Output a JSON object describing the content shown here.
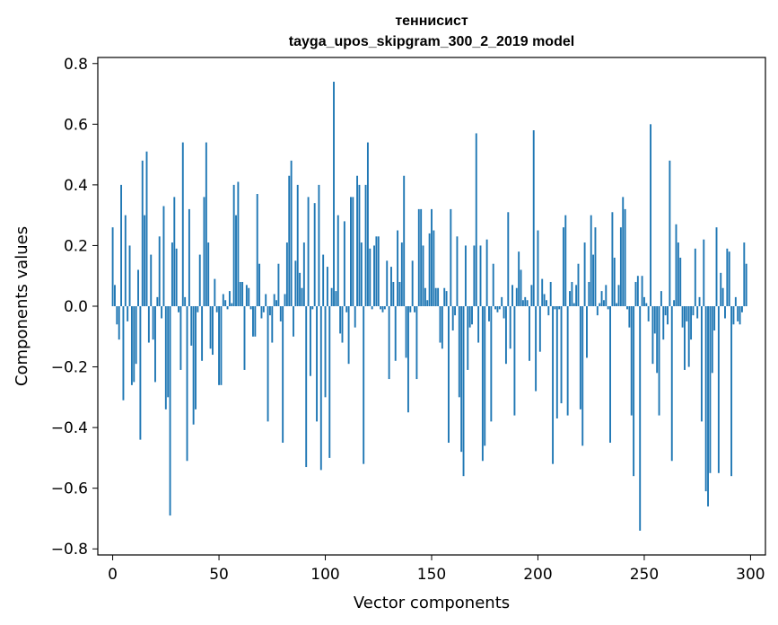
{
  "chart_data": {
    "type": "bar",
    "title": "теннисист",
    "subtitle": "tayga_upos_skipgram_300_2_2019 model",
    "xlabel": "Vector components",
    "ylabel": "Components values",
    "xlim": [
      -7,
      307
    ],
    "ylim": [
      -0.82,
      0.82
    ],
    "xticks": [
      0,
      50,
      100,
      150,
      200,
      250,
      300
    ],
    "xtick_labels": [
      "0",
      "50",
      "100",
      "150",
      "200",
      "250",
      "300"
    ],
    "yticks": [
      -0.8,
      -0.6,
      -0.4,
      -0.2,
      0.0,
      0.2,
      0.4,
      0.6,
      0.8
    ],
    "ytick_labels": [
      "−0.8",
      "−0.6",
      "−0.4",
      "−0.2",
      "0.0",
      "0.2",
      "0.4",
      "0.6",
      "0.8"
    ],
    "bar_color": "#1f77b4",
    "grid": false,
    "values": [
      0.26,
      0.07,
      -0.06,
      -0.11,
      0.4,
      -0.31,
      0.3,
      -0.05,
      0.2,
      -0.26,
      -0.25,
      -0.19,
      0.12,
      -0.44,
      0.48,
      0.3,
      0.51,
      -0.12,
      0.17,
      -0.11,
      -0.25,
      0.03,
      0.23,
      -0.04,
      0.33,
      -0.34,
      -0.3,
      -0.69,
      0.21,
      0.36,
      0.19,
      -0.02,
      -0.21,
      0.54,
      0.03,
      -0.51,
      0.32,
      -0.13,
      -0.39,
      -0.34,
      -0.02,
      0.17,
      -0.18,
      0.36,
      0.54,
      0.21,
      -0.14,
      -0.16,
      0.09,
      -0.02,
      -0.26,
      -0.26,
      0.04,
      0.02,
      -0.01,
      0.05,
      0.01,
      0.4,
      0.3,
      0.41,
      0.08,
      0.08,
      -0.21,
      0.07,
      0.06,
      -0.01,
      -0.1,
      -0.1,
      0.37,
      0.14,
      -0.04,
      -0.02,
      0.04,
      -0.38,
      -0.03,
      -0.12,
      0.04,
      0.02,
      0.14,
      -0.05,
      -0.45,
      0.04,
      0.21,
      0.43,
      0.48,
      -0.1,
      0.15,
      0.4,
      0.11,
      0.06,
      0.21,
      -0.53,
      0.36,
      -0.23,
      -0.01,
      0.34,
      -0.38,
      0.4,
      -0.54,
      0.17,
      -0.3,
      0.13,
      -0.5,
      0.06,
      0.74,
      0.05,
      0.3,
      -0.09,
      -0.12,
      0.28,
      -0.02,
      -0.19,
      0.36,
      0.36,
      -0.07,
      0.43,
      0.4,
      0.21,
      -0.52,
      0.4,
      0.54,
      0.19,
      -0.01,
      0.2,
      0.23,
      0.23,
      -0.01,
      -0.02,
      -0.01,
      0.15,
      -0.24,
      0.13,
      0.08,
      -0.18,
      0.25,
      0.08,
      0.21,
      0.43,
      -0.17,
      -0.35,
      -0.02,
      0.15,
      -0.02,
      -0.24,
      0.32,
      0.32,
      0.2,
      0.06,
      0.02,
      0.24,
      0.32,
      0.25,
      0.06,
      0.06,
      -0.12,
      -0.14,
      0.06,
      0.05,
      -0.45,
      0.32,
      -0.08,
      -0.03,
      0.23,
      -0.3,
      -0.48,
      -0.56,
      0.2,
      -0.21,
      -0.07,
      -0.06,
      0.2,
      0.57,
      -0.12,
      0.2,
      -0.51,
      -0.46,
      0.22,
      -0.05,
      -0.38,
      0.14,
      -0.01,
      -0.02,
      -0.01,
      0.03,
      -0.04,
      -0.19,
      0.31,
      -0.14,
      0.07,
      -0.36,
      0.06,
      0.18,
      0.12,
      0.02,
      0.03,
      0.02,
      -0.18,
      0.07,
      0.58,
      -0.28,
      0.25,
      -0.15,
      0.09,
      0.04,
      0.02,
      -0.03,
      0.08,
      -0.52,
      -0.01,
      -0.37,
      -0.01,
      -0.32,
      0.26,
      0.3,
      -0.36,
      0.05,
      0.08,
      0.01,
      0.07,
      0.14,
      -0.34,
      -0.46,
      0.21,
      -0.17,
      0.08,
      0.3,
      0.17,
      0.26,
      -0.03,
      0.01,
      0.05,
      0.02,
      0.07,
      -0.01,
      -0.45,
      0.31,
      0.16,
      0.01,
      0.07,
      0.26,
      0.36,
      0.32,
      -0.01,
      -0.07,
      -0.36,
      -0.56,
      0.08,
      0.1,
      -0.74,
      0.1,
      0.03,
      0.01,
      -0.05,
      0.6,
      -0.19,
      -0.09,
      -0.22,
      -0.36,
      0.05,
      -0.11,
      -0.03,
      -0.06,
      0.48,
      -0.51,
      0.02,
      0.27,
      0.21,
      0.16,
      -0.07,
      -0.21,
      -0.05,
      -0.2,
      -0.11,
      -0.03,
      0.19,
      -0.04,
      0.03,
      -0.38,
      0.22,
      -0.61,
      -0.66,
      -0.55,
      -0.22,
      -0.08,
      0.26,
      -0.55,
      0.11,
      0.06,
      -0.04,
      0.19,
      0.18,
      -0.56,
      -0.06,
      0.03,
      -0.05,
      -0.06,
      -0.02,
      0.21,
      0.14
    ]
  }
}
